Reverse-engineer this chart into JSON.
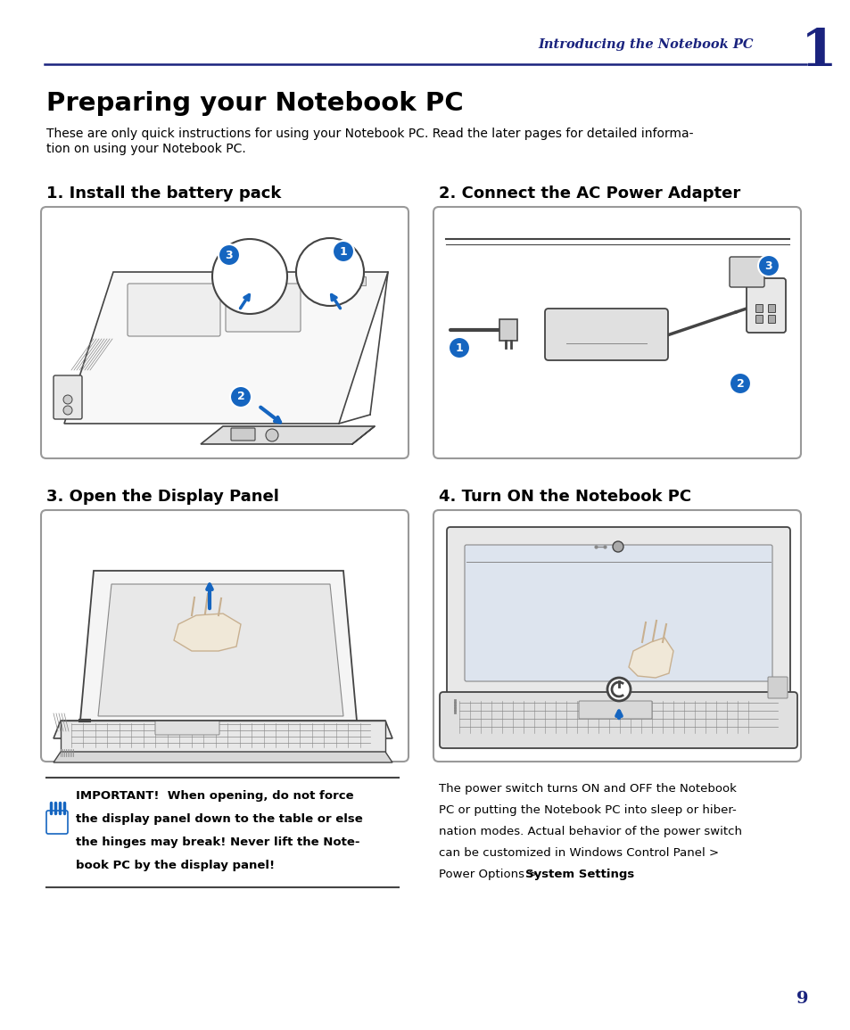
{
  "bg_color": "#ffffff",
  "header_color": "#1a237e",
  "header_text": "Introducing the Notebook PC",
  "header_num": "1",
  "title": "Preparing your Notebook PC",
  "subtitle_line1": "These are only quick instructions for using your Notebook PC. Read the later pages for detailed informa-",
  "subtitle_line2": "tion on using your Notebook PC.",
  "section1_title": "1. Install the battery pack",
  "section2_title": "2. Connect the AC Power Adapter",
  "section3_title": "3. Open the Display Panel",
  "section4_title": "4. Turn ON the Notebook PC",
  "imp_line1": "IMPORTANT!  When opening, do not force",
  "imp_line2": "the display panel down to the table or else",
  "imp_line3": "the hinges may break! Never lift the Note-",
  "imp_line4": "book PC by the display panel!",
  "body_line1": "The power switch turns ON and OFF the Notebook",
  "body_line2": "PC or putting the Notebook PC into sleep or hiber-",
  "body_line3": "nation modes. Actual behavior of the power switch",
  "body_line4": "can be customized in Windows Control Panel >",
  "body_line5a": "Power Options > ",
  "body_line5b": "System Settings",
  "body_line5c": ".",
  "page_number": "9",
  "dark_blue": "#1a237e",
  "mid_blue": "#1565c0",
  "black": "#000000",
  "gray_border": "#999999",
  "box_bg": "#ffffff",
  "sketch_color": "#444444",
  "light_sketch": "#888888"
}
